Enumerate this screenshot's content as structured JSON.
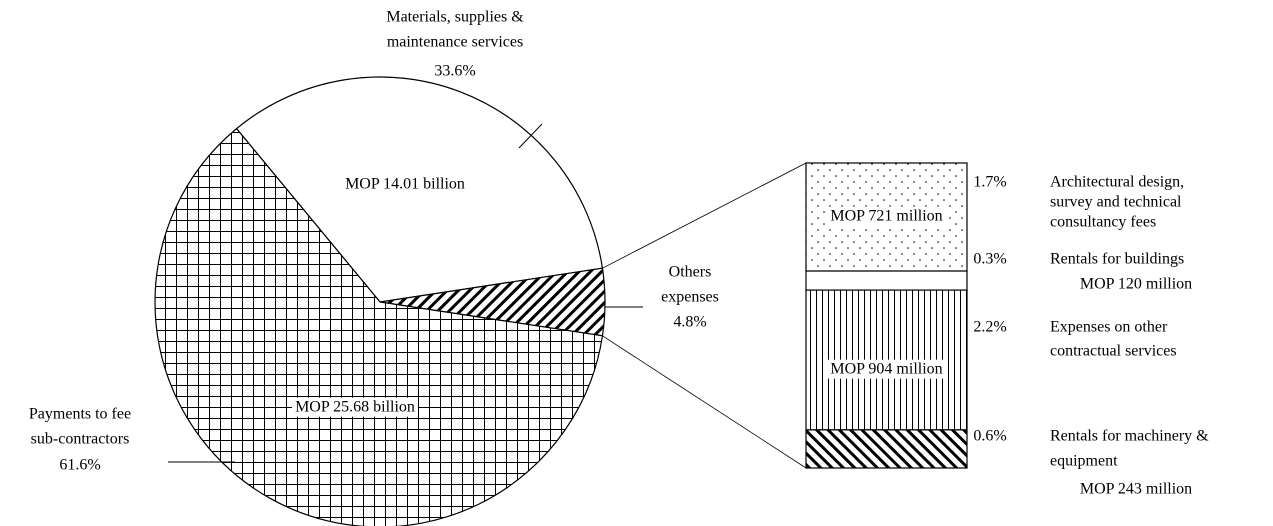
{
  "chart_data": {
    "type": "pie",
    "slices": [
      {
        "label": [
          "Materials, supplies &",
          "maintenance services"
        ],
        "value": 33.6,
        "value_label": "33.6%",
        "amount": "MOP 14.01 billion",
        "pattern": "none"
      },
      {
        "label": [
          "Others",
          "expenses"
        ],
        "value": 4.8,
        "value_label": "4.8%",
        "pattern": "hatch-fwd"
      },
      {
        "label": [
          "Payments to fee",
          "sub-contractors"
        ],
        "value": 61.6,
        "value_label": "61.6%",
        "amount": "MOP 25.68 billion",
        "pattern": "grid"
      }
    ],
    "bar": [
      {
        "label": [
          "Architectural design,",
          "survey and technical",
          "consultancy fees"
        ],
        "value": 1.7,
        "value_label": "1.7%",
        "amount": "MOP 721 million",
        "pattern": "dots"
      },
      {
        "label": [
          "Rentals for buildings"
        ],
        "value": 0.3,
        "value_label": "0.3%",
        "amount": "MOP 120 million",
        "pattern": "none"
      },
      {
        "label": [
          "Expenses on other",
          "contractual services"
        ],
        "value": 2.2,
        "value_label": "2.2%",
        "amount": "MOP 904 million",
        "pattern": "vlines"
      },
      {
        "label": [
          "Rentals for machinery &",
          "equipment"
        ],
        "value": 0.6,
        "value_label": "0.6%",
        "amount": "MOP 243 million",
        "pattern": "hatch-back"
      }
    ]
  }
}
